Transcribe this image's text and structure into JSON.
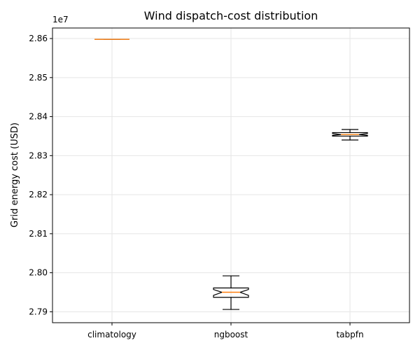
{
  "chart_data": {
    "type": "boxplot",
    "title": "Wind dispatch-cost distribution",
    "xlabel": "",
    "ylabel": "Grid energy cost (USD)",
    "y_offset_label": "1e7",
    "y_scale_factor": 10000000,
    "ylim": [
      2.7872,
      2.8627
    ],
    "yticks": [
      2.79,
      2.8,
      2.81,
      2.82,
      2.83,
      2.84,
      2.85,
      2.86
    ],
    "ytick_labels": [
      "2.79",
      "2.80",
      "2.81",
      "2.82",
      "2.83",
      "2.84",
      "2.85",
      "2.86"
    ],
    "grid": true,
    "notched": true,
    "categories": [
      "climatology",
      "ngboost",
      "tabpfn"
    ],
    "series": [
      {
        "category": "climatology",
        "whisker_low": 2.8598,
        "q1": 2.8598,
        "median": 2.8598,
        "q3": 2.8598,
        "whisker_high": 2.8598,
        "notch_low": 2.8598,
        "notch_high": 2.8598
      },
      {
        "category": "ngboost",
        "whisker_low": 2.7906,
        "q1": 2.7937,
        "median": 2.795,
        "q3": 2.7961,
        "whisker_high": 2.7992,
        "notch_low": 2.7942,
        "notch_high": 2.7957
      },
      {
        "category": "tabpfn",
        "whisker_low": 2.834,
        "q1": 2.835,
        "median": 2.8354,
        "q3": 2.8359,
        "whisker_high": 2.8367,
        "notch_low": 2.8352,
        "notch_high": 2.8357
      }
    ],
    "colors": {
      "box": "#000000",
      "median": "#ff7f0e",
      "grid": "#e5e5e5",
      "axis": "#000000"
    }
  }
}
